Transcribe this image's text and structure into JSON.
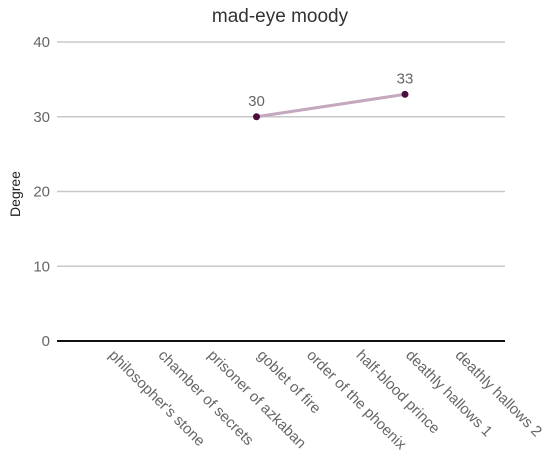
{
  "chart_data": {
    "type": "line",
    "title": "mad-eye moody",
    "ylabel": "Degree",
    "xlabel": "",
    "ylim": [
      0,
      40
    ],
    "yticks": [
      0,
      10,
      20,
      30,
      40
    ],
    "grid": true,
    "categories": [
      "philosopher's stone",
      "chamber of secrets",
      "prisoner of azkaban",
      "goblet of fire",
      "order of the phoenix",
      "half-blood prince",
      "deathly hallows 1",
      "deathly hallows 2"
    ],
    "series": [
      {
        "values": [
          null,
          null,
          null,
          30,
          null,
          null,
          33,
          null
        ],
        "line_color": "#c4a8bd",
        "point_color": "#4a0d3e",
        "data_labels": true
      }
    ]
  }
}
